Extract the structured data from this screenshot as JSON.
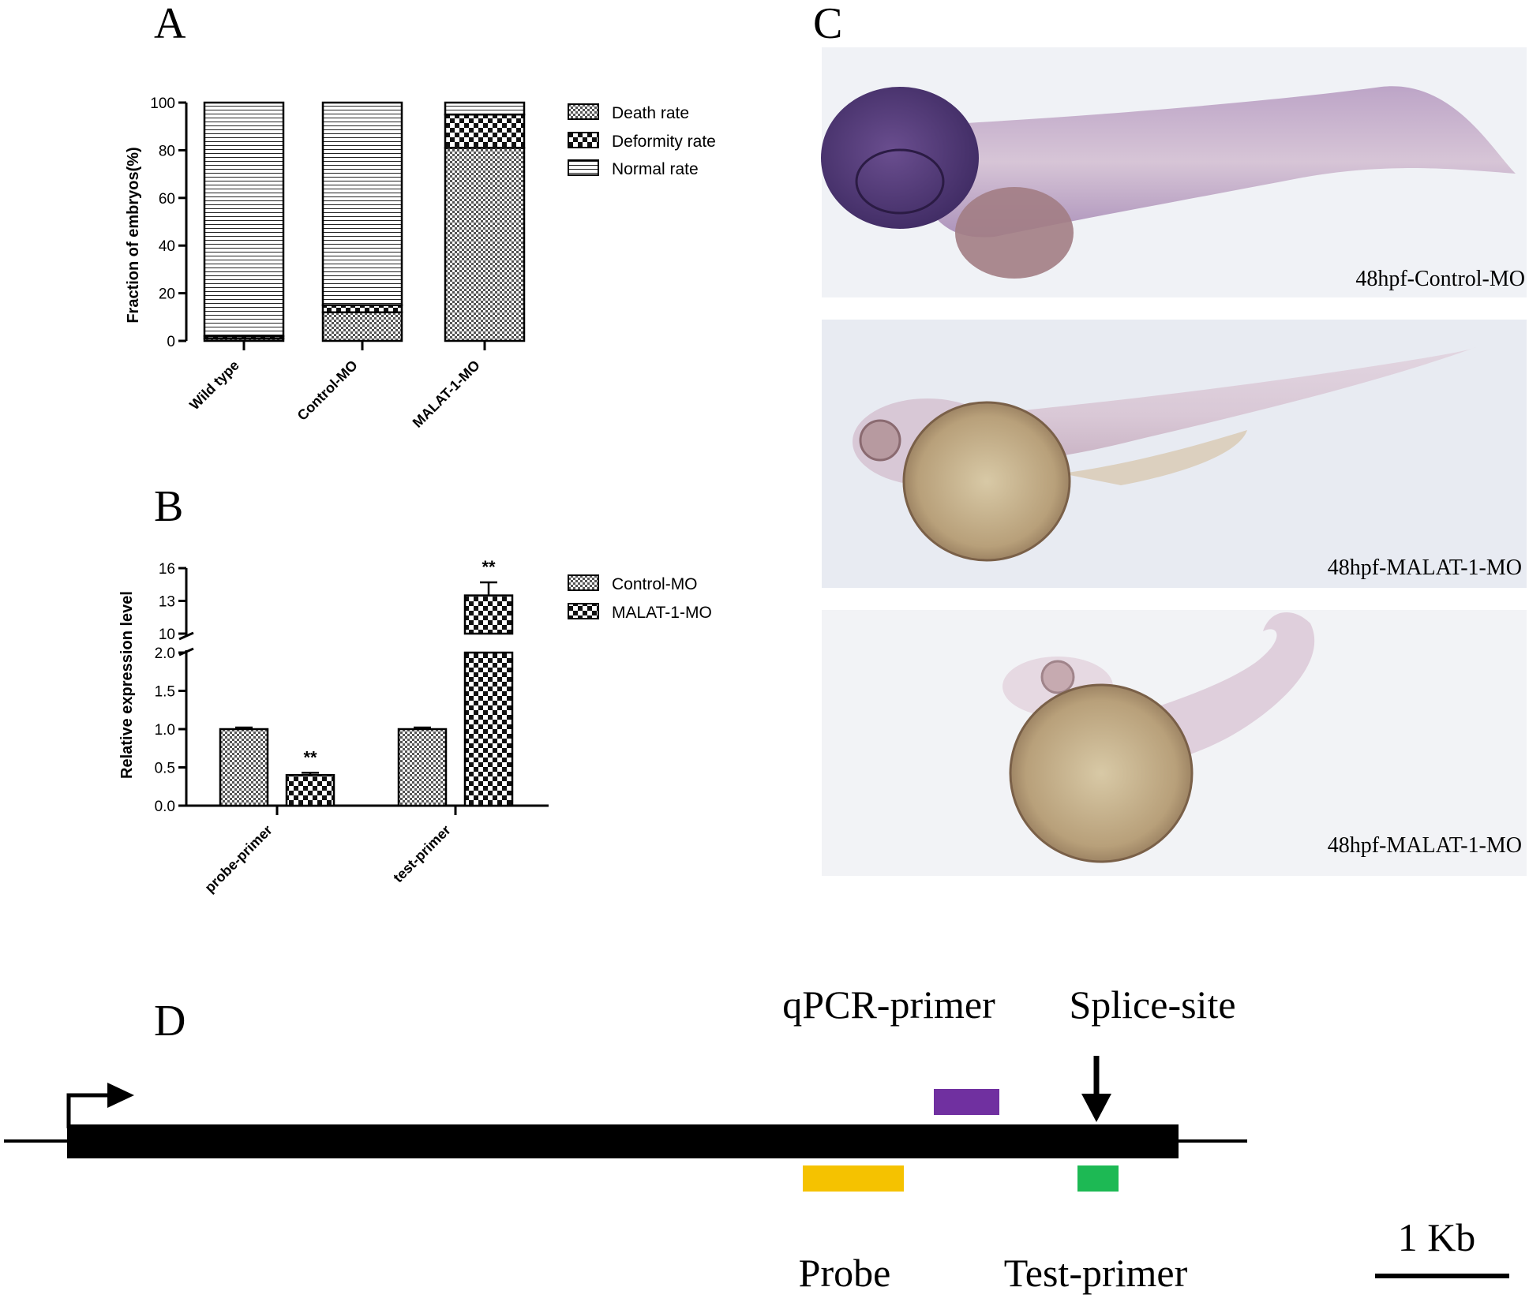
{
  "panels": {
    "a": "A",
    "b": "B",
    "c": "C",
    "d": "D"
  },
  "chart_data": [
    {
      "type": "bar",
      "stacked": true,
      "ylabel": "Fraction of embryos(%)",
      "ylim": [
        0,
        100
      ],
      "yticks": [
        "0",
        "20",
        "40",
        "60",
        "80",
        "100"
      ],
      "categories": [
        "Wild type",
        "Control-MO",
        "MALAT-1-MO"
      ],
      "series": [
        {
          "name": "Death rate",
          "values": [
            1,
            12,
            81
          ],
          "pattern": "dense-checker"
        },
        {
          "name": "Deformity rate",
          "values": [
            1,
            3,
            14
          ],
          "pattern": "checker"
        },
        {
          "name": "Normal rate",
          "values": [
            98,
            85,
            5
          ],
          "pattern": "horizontal-lines"
        }
      ],
      "legend_position": "top-right"
    },
    {
      "type": "bar",
      "ylabel": "Relative expression level",
      "broken_axis": true,
      "lower_yticks": [
        "0.0",
        "0.5",
        "1.0",
        "1.5",
        "2.0"
      ],
      "upper_yticks": [
        "10",
        "13",
        "16"
      ],
      "categories": [
        "probe-primer",
        "test-primer"
      ],
      "series": [
        {
          "name": "Control-MO",
          "values": [
            1.0,
            1.0
          ],
          "errors": [
            0.02,
            0.02
          ],
          "pattern": "dense-checker"
        },
        {
          "name": "MALAT-1-MO",
          "values": [
            0.4,
            13.5
          ],
          "errors": [
            0.03,
            1.2
          ],
          "pattern": "checker"
        }
      ],
      "annotations": [
        {
          "series": "MALAT-1-MO",
          "category": "probe-primer",
          "text": "**"
        },
        {
          "series": "MALAT-1-MO",
          "category": "test-primer",
          "text": "**"
        }
      ],
      "legend_position": "top-right"
    }
  ],
  "panel_c": {
    "images": [
      {
        "caption": "48hpf-Control-MO"
      },
      {
        "caption": "48hpf-MALAT-1-MO"
      },
      {
        "caption": "48hpf-MALAT-1-MO"
      }
    ]
  },
  "panel_d": {
    "qpcr_label": "qPCR-primer",
    "splice_label": "Splice-site",
    "probe_label": "Probe",
    "test_label": "Test-primer",
    "scale_label": "1 Kb",
    "colors": {
      "qpcr": "#7030a0",
      "probe": "#f5c200",
      "test": "#1db954",
      "gene": "#000000"
    }
  }
}
